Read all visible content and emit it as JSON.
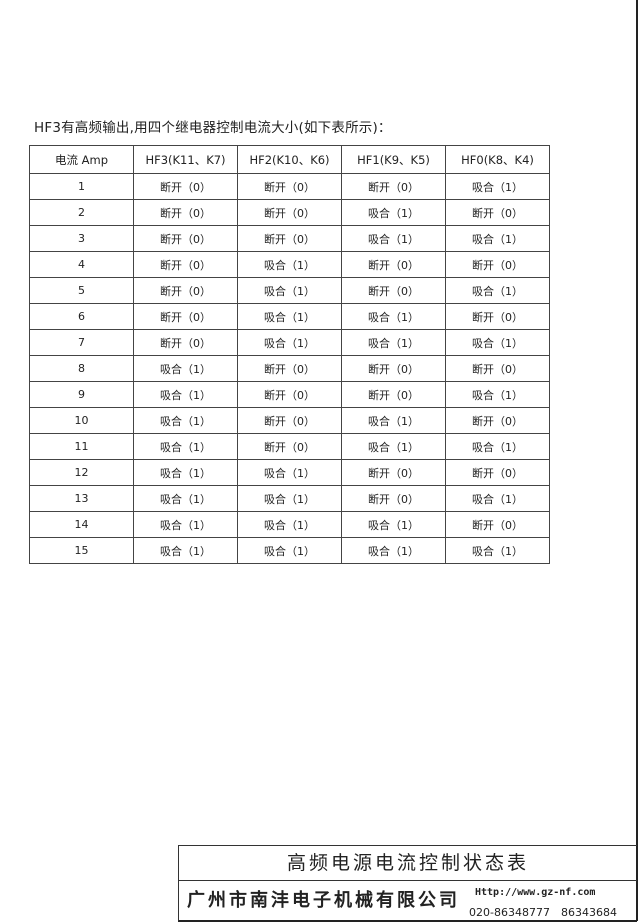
{
  "intro": "HF3有高频输出,用四个继电器控制电流大小(如下表所示)：",
  "table": {
    "headers": [
      "电流 Amp",
      "HF3(K11、K7)",
      "HF2(K10、K6)",
      "HF1(K9、K5)",
      "HF0(K8、K4)"
    ],
    "rows": [
      [
        "1",
        "断开（0）",
        "断开（0）",
        "断开（0）",
        "吸合（1）"
      ],
      [
        "2",
        "断开（0）",
        "断开（0）",
        "吸合（1）",
        "断开（0）"
      ],
      [
        "3",
        "断开（0）",
        "断开（0）",
        "吸合（1）",
        "吸合（1）"
      ],
      [
        "4",
        "断开（0）",
        "吸合（1）",
        "断开（0）",
        "断开（0）"
      ],
      [
        "5",
        "断开（0）",
        "吸合（1）",
        "断开（0）",
        "吸合（1）"
      ],
      [
        "6",
        "断开（0）",
        "吸合（1）",
        "吸合（1）",
        "断开（0）"
      ],
      [
        "7",
        "断开（0）",
        "吸合（1）",
        "吸合（1）",
        "吸合（1）"
      ],
      [
        "8",
        "吸合（1）",
        "断开（0）",
        "断开（0）",
        "断开（0）"
      ],
      [
        "9",
        "吸合（1）",
        "断开（0）",
        "断开（0）",
        "吸合（1）"
      ],
      [
        "10",
        "吸合（1）",
        "断开（0）",
        "吸合（1）",
        "断开（0）"
      ],
      [
        "11",
        "吸合（1）",
        "断开（0）",
        "吸合（1）",
        "吸合（1）"
      ],
      [
        "12",
        "吸合（1）",
        "吸合（1）",
        "断开（0）",
        "断开（0）"
      ],
      [
        "13",
        "吸合（1）",
        "吸合（1）",
        "断开（0）",
        "吸合（1）"
      ],
      [
        "14",
        "吸合（1）",
        "吸合（1）",
        "吸合（1）",
        "断开（0）"
      ],
      [
        "15",
        "吸合（1）",
        "吸合（1）",
        "吸合（1）",
        "吸合（1）"
      ]
    ]
  },
  "footer": {
    "title": "高频电源电流控制状态表",
    "company": "广州市南沣电子机械有限公司",
    "url": "Http://www.gz-nf.com",
    "phone": "020-86348777　86343684"
  }
}
